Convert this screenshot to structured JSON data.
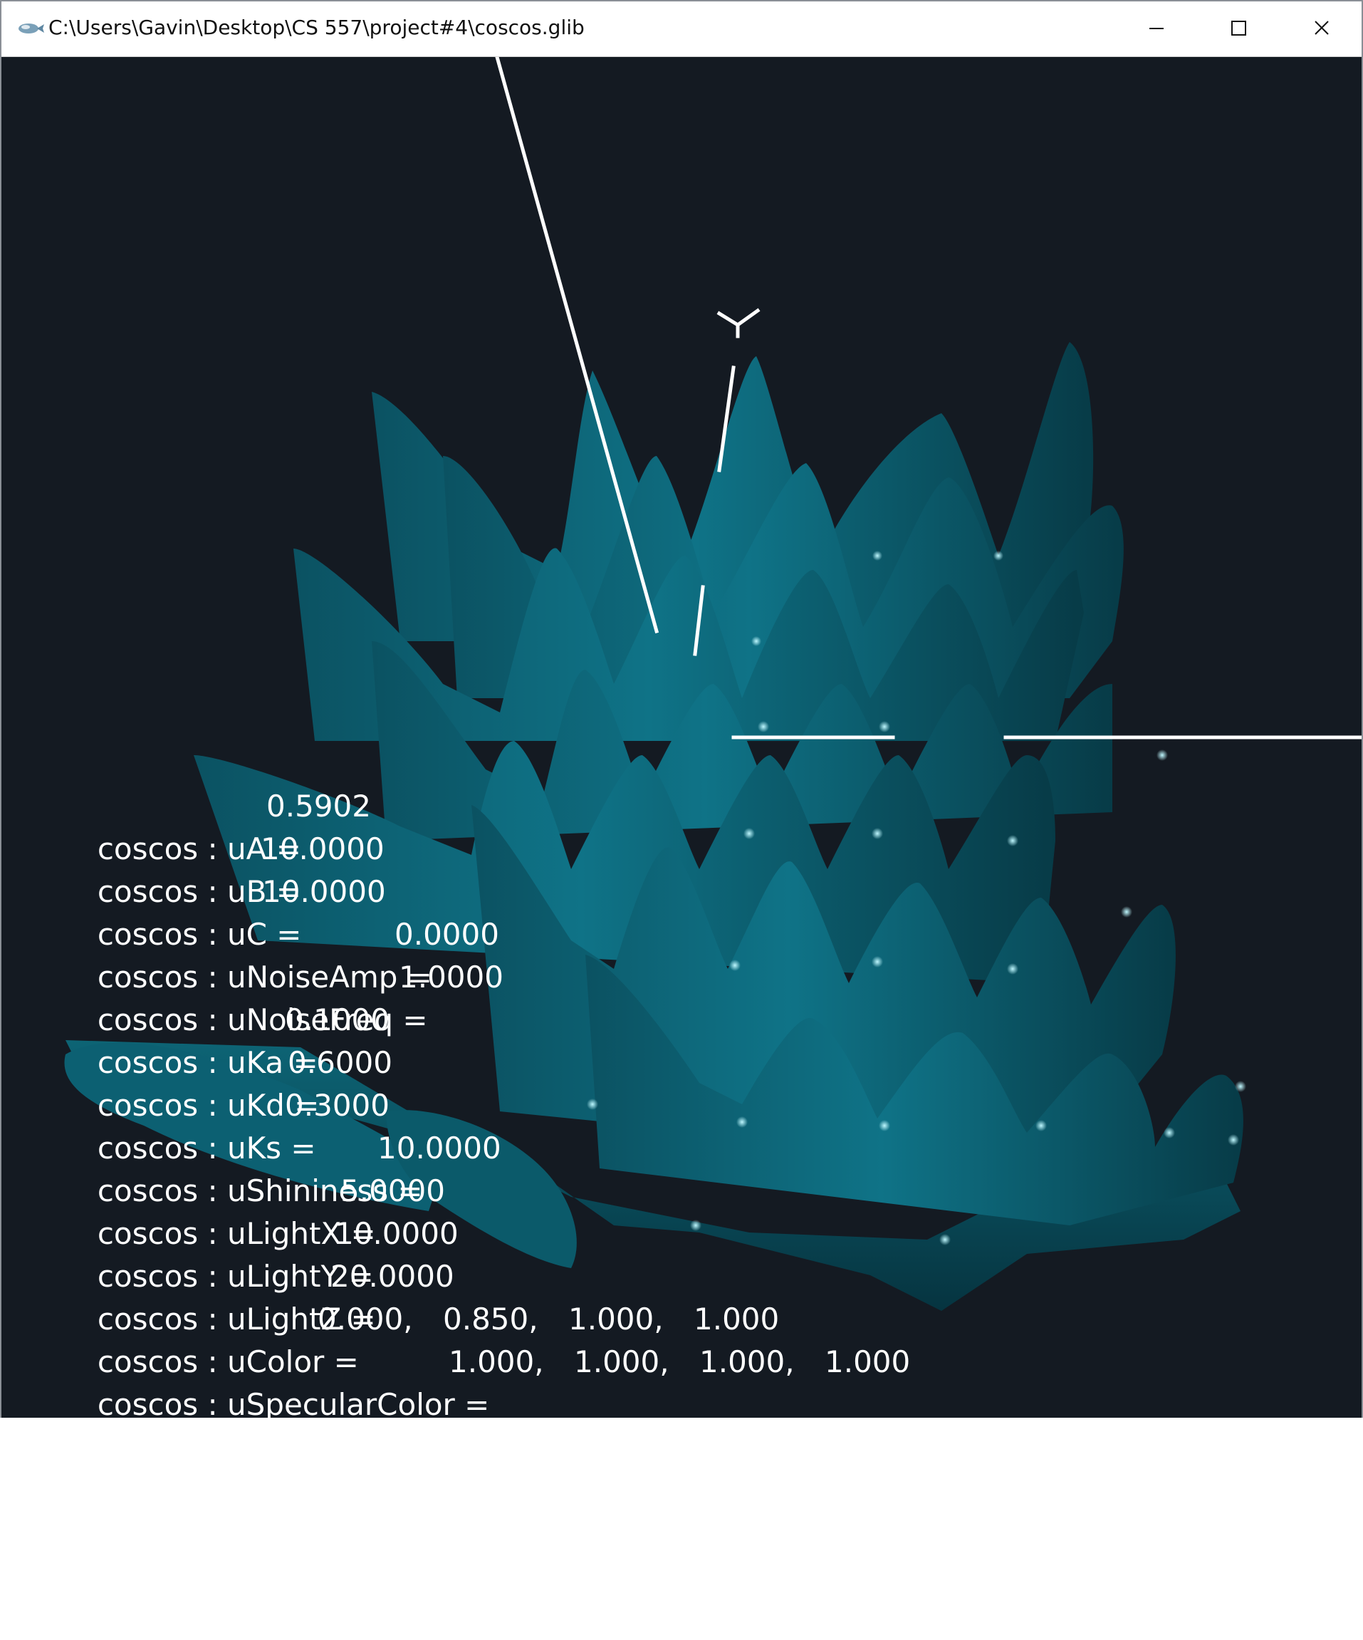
{
  "window": {
    "title": "C:\\Users\\Gavin\\Desktop\\CS 557\\project#4\\coscos.glib"
  },
  "scene": {
    "surface_color": "#0e6e80",
    "axis_label_y": "Y"
  },
  "readouts": [
    {
      "name": "coscos : uA =",
      "value": "0.5902"
    },
    {
      "name": "coscos : uB =",
      "value": "10.0000"
    },
    {
      "name": "coscos : uC =",
      "value": "10.0000"
    },
    {
      "name": "coscos : uNoiseAmp =",
      "value": "0.0000"
    },
    {
      "name": "coscos : uNoiseFreq =",
      "value": "1.0000"
    },
    {
      "name": "coscos : uKa =",
      "value": "0.1000"
    },
    {
      "name": "coscos : uKd =",
      "value": "0.6000"
    },
    {
      "name": "coscos : uKs =",
      "value": "0.3000"
    },
    {
      "name": "coscos : uShininess =",
      "value": "10.0000"
    },
    {
      "name": "coscos : uLightX =",
      "value": "5.0000"
    },
    {
      "name": "coscos : uLightY =",
      "value": "10.0000"
    },
    {
      "name": "coscos : uLightZ =",
      "value": "20.0000"
    },
    {
      "name": "coscos : uColor =",
      "values": [
        "0.000,",
        "0.850,",
        "1.000,",
        "1.000"
      ]
    },
    {
      "name": "coscos : uSpecularColor =",
      "values": [
        "1.000,",
        "1.000,",
        "1.000,",
        "1.000"
      ]
    }
  ]
}
